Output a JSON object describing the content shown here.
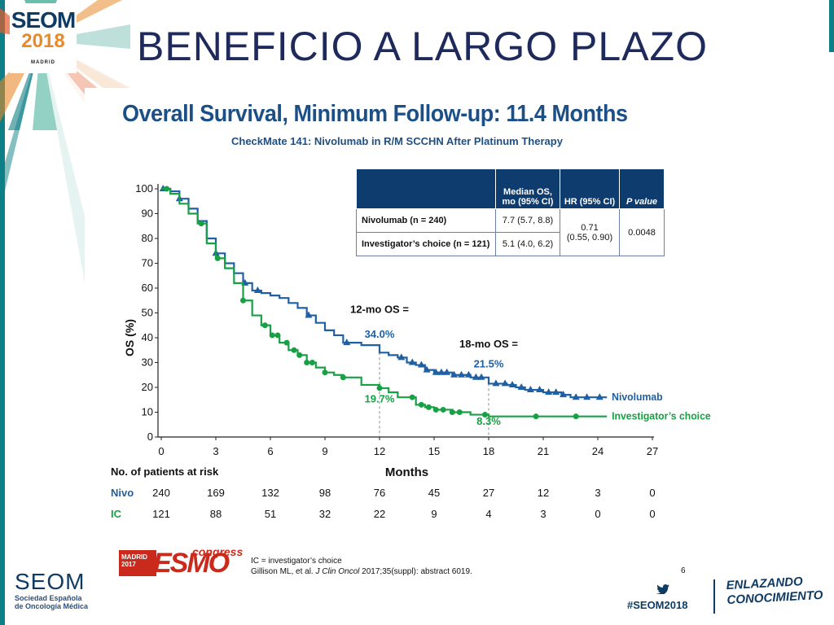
{
  "slide": {
    "title": "BENEFICIO A LARGO PLAZO"
  },
  "congress_logo": {
    "name": "SEOM",
    "year": "2018",
    "city": "MADRID"
  },
  "chart_data": {
    "type": "line",
    "title": "Overall Survival, Minimum Follow-up: 11.4 Months",
    "subtitle": "CheckMate 141: Nivolumab in R/M SCCHN After Platinum Therapy",
    "xlabel": "Months",
    "ylabel": "OS (%)",
    "xlim": [
      0,
      27
    ],
    "ylim": [
      0,
      100
    ],
    "x_ticks": [
      "0",
      "3",
      "6",
      "9",
      "12",
      "15",
      "18",
      "21",
      "24",
      "27"
    ],
    "y_ticks": [
      "0",
      "10",
      "20",
      "30",
      "40",
      "50",
      "60",
      "70",
      "80",
      "90",
      "100"
    ],
    "series": [
      {
        "name": "Nivolumab",
        "color": "#1f5fa3",
        "points": [
          [
            0,
            100
          ],
          [
            0.5,
            99
          ],
          [
            1,
            96
          ],
          [
            1.5,
            92
          ],
          [
            2,
            87
          ],
          [
            2.5,
            80
          ],
          [
            3,
            74
          ],
          [
            3.5,
            70
          ],
          [
            4,
            66
          ],
          [
            4.5,
            62
          ],
          [
            5,
            59
          ],
          [
            5.5,
            58
          ],
          [
            6,
            57
          ],
          [
            6.5,
            56
          ],
          [
            7,
            54
          ],
          [
            7.5,
            52
          ],
          [
            8,
            49
          ],
          [
            8.5,
            46
          ],
          [
            9,
            43
          ],
          [
            9.5,
            41
          ],
          [
            10,
            38
          ],
          [
            11,
            37
          ],
          [
            12,
            34
          ],
          [
            12.5,
            33
          ],
          [
            13,
            32
          ],
          [
            13.5,
            30
          ],
          [
            14,
            29
          ],
          [
            14.5,
            27
          ],
          [
            15,
            26
          ],
          [
            16,
            25
          ],
          [
            17,
            24
          ],
          [
            18,
            21.5
          ],
          [
            19,
            21
          ],
          [
            19.5,
            20
          ],
          [
            20,
            19
          ],
          [
            21,
            18
          ],
          [
            22,
            17
          ],
          [
            22.5,
            16
          ],
          [
            24.5,
            16
          ]
        ],
        "censor_x": [
          0.1,
          1,
          3,
          4.6,
          5.3,
          8.1,
          10.2,
          13.2,
          13.8,
          14.3,
          14.6,
          15.1,
          15.4,
          15.7,
          16.1,
          16.5,
          16.9,
          17.3,
          17.6,
          18.4,
          18.9,
          19.3,
          19.8,
          20.3,
          20.8,
          21.3,
          21.7,
          22.1,
          22.8,
          23.4,
          24.1
        ],
        "end_label": "Nivolumab"
      },
      {
        "name": "Investigator's choice",
        "color": "#18a045",
        "points": [
          [
            0,
            100
          ],
          [
            0.5,
            98
          ],
          [
            1,
            94
          ],
          [
            1.5,
            90
          ],
          [
            2,
            86
          ],
          [
            2.5,
            78
          ],
          [
            3,
            72
          ],
          [
            3.5,
            68
          ],
          [
            4,
            62
          ],
          [
            4.5,
            55
          ],
          [
            5,
            49
          ],
          [
            5.5,
            45
          ],
          [
            6,
            41
          ],
          [
            6.5,
            38
          ],
          [
            7,
            35
          ],
          [
            7.5,
            33
          ],
          [
            8,
            30
          ],
          [
            8.5,
            28
          ],
          [
            9,
            26
          ],
          [
            9.5,
            25
          ],
          [
            10,
            24
          ],
          [
            11,
            21
          ],
          [
            12,
            19.7
          ],
          [
            12.5,
            18
          ],
          [
            13,
            16
          ],
          [
            14,
            13
          ],
          [
            14.5,
            12
          ],
          [
            15,
            11
          ],
          [
            16,
            10
          ],
          [
            17,
            9
          ],
          [
            18,
            8.3
          ],
          [
            24.5,
            8.3
          ]
        ],
        "censor_x": [
          0.3,
          2.2,
          3.1,
          4.5,
          5.7,
          6.1,
          6.4,
          6.9,
          7.3,
          7.6,
          8,
          8.3,
          9,
          10,
          12,
          13.8,
          14.3,
          14.7,
          15.1,
          15.5,
          16,
          16.4,
          17.8,
          20.6,
          22.8
        ],
        "end_label": "Investigator’s choice"
      }
    ],
    "annotations": [
      {
        "text": "12-mo OS =",
        "x": 12,
        "y": 50,
        "color": "#111111"
      },
      {
        "text": "34.0%",
        "x": 12,
        "y": 40,
        "color": "#1f5fa3"
      },
      {
        "text": "18-mo OS =",
        "x": 18,
        "y": 36,
        "color": "#111111"
      },
      {
        "text": "21.5%",
        "x": 18,
        "y": 28,
        "color": "#1f5fa3"
      },
      {
        "text": "19.7%",
        "x": 12,
        "y": 14,
        "color": "#18a045"
      },
      {
        "text": "8.3%",
        "x": 18,
        "y": 5,
        "color": "#18a045"
      }
    ],
    "risk_table": {
      "header": "No. of patients at risk",
      "rows": [
        {
          "label": "Nivo",
          "color": "#1f5fa3",
          "values": [
            "240",
            "169",
            "132",
            "98",
            "76",
            "45",
            "27",
            "12",
            "3",
            "0"
          ]
        },
        {
          "label": "IC",
          "color": "#18a045",
          "values": [
            "121",
            "88",
            "51",
            "32",
            "22",
            "9",
            "4",
            "3",
            "0",
            "0"
          ]
        }
      ]
    }
  },
  "table": {
    "headers": [
      "",
      "Median OS, mo (95% CI)",
      "HR (95% CI)",
      "P value"
    ],
    "rows": [
      {
        "arm": "Nivolumab (n = 240)",
        "median": "7.7 (5.7, 8.8)"
      },
      {
        "arm": "Investigator’s choice (n = 121)",
        "median": "5.1 (4.0, 6.2)"
      }
    ],
    "hr_value": "0.71",
    "hr_ci": "(0.55, 0.90)",
    "p_value": "0.0048"
  },
  "footer": {
    "esmo_city": "MADRID",
    "esmo_year": "2017",
    "esmo_word": "ESMO",
    "esmo_congress": "congress",
    "note1": "IC = investigator’s choice",
    "note2_pre": "Gillison ML, et al. ",
    "note2_journal": "J Clin Oncol",
    "note2_post": " 2017;35(suppl): abstract 6019.",
    "page": "6"
  },
  "branding": {
    "seom": "SEOM",
    "seom_line1": "Sociedad Española",
    "seom_line2": "de Oncología Médica",
    "hashtag": "#SEOM2018",
    "tagline_line1": "ENLAZANDO",
    "tagline_line2": "CONOCIMIENTO"
  },
  "colors": {
    "navy": "#0f3b63",
    "teal": "#0e7f86",
    "orange": "#e8892a",
    "table_header": "#0f3c6e"
  }
}
